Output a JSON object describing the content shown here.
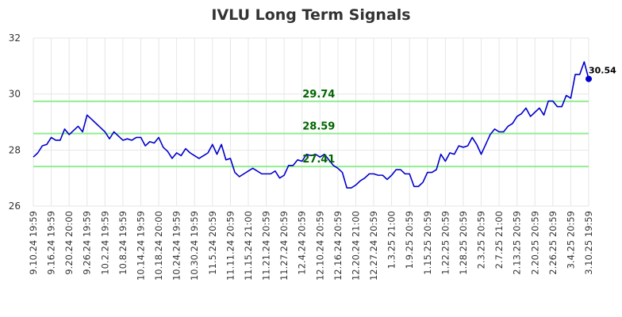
{
  "chart_data": {
    "type": "line",
    "title": "IVLU Long Term Signals",
    "xlabel": "",
    "ylabel": "",
    "ylim": [
      26,
      32
    ],
    "yticks": [
      26,
      28,
      30,
      32
    ],
    "grid": true,
    "x_ticks": [
      "9.10.24 19:59",
      "9.16.24 19:59",
      "9.20.24 20:00",
      "9.26.24 19:59",
      "10.2.24 19:59",
      "10.8.24 19:59",
      "10.14.24 19:59",
      "10.18.24 20:00",
      "10.24.24 19:59",
      "10.30.24 19:59",
      "11.5.24 20:59",
      "11.11.24 20:59",
      "11.15.24 21:00",
      "11.21.24 20:59",
      "11.27.24 20:59",
      "12.4.24 20:59",
      "12.10.24 20:59",
      "12.16.24 20:59",
      "12.20.24 21:00",
      "12.27.24 20:59",
      "1.3.25 21:00",
      "1.9.25 20:59",
      "1.15.25 20:59",
      "1.22.25 20:59",
      "1.28.25 20:59",
      "2.3.25 20:59",
      "2.7.25 21:00",
      "2.13.25 20:59",
      "2.20.25 20:59",
      "2.26.25 20:59",
      "3.4.25 20:59",
      "3.10.25 19:59"
    ],
    "series": [
      {
        "color": "#0000cc",
        "values": [
          27.75,
          27.9,
          28.15,
          28.2,
          28.45,
          28.35,
          28.35,
          28.75,
          28.55,
          28.7,
          28.85,
          28.65,
          29.25,
          29.1,
          28.95,
          28.8,
          28.65,
          28.4,
          28.65,
          28.5,
          28.35,
          28.4,
          28.35,
          28.45,
          28.45,
          28.15,
          28.3,
          28.25,
          28.45,
          28.1,
          27.95,
          27.7,
          27.9,
          27.8,
          28.05,
          27.9,
          27.8,
          27.7,
          27.8,
          27.9,
          28.2,
          27.85,
          28.2,
          27.65,
          27.7,
          27.2,
          27.05,
          27.15,
          27.25,
          27.35,
          27.25,
          27.15,
          27.15,
          27.15,
          27.25,
          27.0,
          27.1,
          27.45,
          27.45,
          27.65,
          27.6,
          27.85,
          27.8,
          27.85,
          27.75,
          27.85,
          27.65,
          27.45,
          27.35,
          27.2,
          26.65,
          26.65,
          26.75,
          26.9,
          27.0,
          27.15,
          27.15,
          27.1,
          27.1,
          26.95,
          27.1,
          27.3,
          27.3,
          27.15,
          27.15,
          26.7,
          26.7,
          26.85,
          27.2,
          27.2,
          27.3,
          27.85,
          27.6,
          27.9,
          27.85,
          28.15,
          28.1,
          28.15,
          28.45,
          28.2,
          27.85,
          28.2,
          28.55,
          28.75,
          28.65,
          28.65,
          28.85,
          28.95,
          29.2,
          29.3,
          29.5,
          29.2,
          29.35,
          29.5,
          29.25,
          29.75,
          29.75,
          29.55,
          29.55,
          29.95,
          29.85,
          30.7,
          30.7,
          31.15,
          30.54
        ]
      }
    ],
    "horizontal_lines": [
      {
        "value": 29.74,
        "label": "29.74",
        "color": "#90ee90",
        "label_color": "#006600"
      },
      {
        "value": 28.59,
        "label": "28.59",
        "color": "#90ee90",
        "label_color": "#006600"
      },
      {
        "value": 27.41,
        "label": "27.41",
        "color": "#90ee90",
        "label_color": "#006600"
      }
    ],
    "last_value": {
      "value": 30.54,
      "label": "30.54"
    }
  }
}
